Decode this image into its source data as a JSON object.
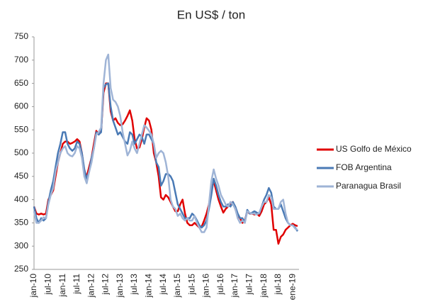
{
  "chart_data": {
    "type": "line",
    "title": "En US$ / ton",
    "categories": [
      "jan-10",
      null,
      null,
      null,
      null,
      null,
      "jul-10",
      null,
      null,
      null,
      null,
      null,
      "jan-11",
      null,
      null,
      null,
      null,
      null,
      "jul-11",
      null,
      null,
      null,
      null,
      null,
      "jan-12",
      null,
      null,
      null,
      null,
      null,
      "jul-12",
      null,
      null,
      null,
      null,
      null,
      "jan-13",
      null,
      null,
      null,
      null,
      null,
      "jul-13",
      null,
      null,
      null,
      null,
      null,
      "jan-14",
      null,
      null,
      null,
      null,
      null,
      "jul-14",
      null,
      null,
      null,
      null,
      null,
      "jan-15",
      null,
      null,
      null,
      null,
      null,
      "jul-15",
      null,
      null,
      null,
      null,
      null,
      "jan-16",
      null,
      null,
      null,
      null,
      null,
      "jul-16",
      null,
      null,
      null,
      null,
      null,
      "jan-17",
      null,
      null,
      null,
      null,
      null,
      "jul-17",
      null,
      null,
      null,
      null,
      null,
      "jan-18",
      null,
      null,
      null,
      null,
      null,
      "jul-18",
      null,
      null,
      null,
      null,
      null,
      "ene-19",
      null,
      null
    ],
    "series": [
      {
        "name": "US Golfo de México",
        "color": "#e00000",
        "values": [
          385,
          370,
          368,
          370,
          368,
          370,
          400,
          410,
          420,
          450,
          480,
          500,
          520,
          525,
          525,
          520,
          522,
          525,
          530,
          525,
          500,
          460,
          450,
          470,
          490,
          520,
          548,
          540,
          548,
          630,
          650,
          650,
          590,
          570,
          575,
          565,
          560,
          562,
          570,
          580,
          592,
          570,
          530,
          510,
          512,
          530,
          555,
          575,
          570,
          550,
          500,
          480,
          450,
          405,
          400,
          410,
          405,
          395,
          385,
          375,
          375,
          390,
          400,
          370,
          350,
          345,
          345,
          350,
          345,
          340,
          342,
          355,
          370,
          390,
          420,
          440,
          420,
          400,
          385,
          372,
          380,
          385,
          390,
          395,
          380,
          365,
          360,
          350,
          355,
          375,
          370,
          370,
          368,
          370,
          365,
          375,
          390,
          395,
          405,
          390,
          335,
          335,
          305,
          320,
          325,
          335,
          340,
          345,
          348,
          345,
          343
        ]
      },
      {
        "name": "FOB Argentina",
        "color": "#4a7ab5",
        "values": [
          385,
          360,
          350,
          360,
          355,
          360,
          395,
          420,
          440,
          470,
          500,
          520,
          545,
          545,
          520,
          510,
          505,
          510,
          525,
          520,
          500,
          465,
          445,
          460,
          490,
          510,
          545,
          540,
          545,
          640,
          648,
          650,
          600,
          570,
          555,
          540,
          545,
          535,
          525,
          520,
          545,
          540,
          520,
          530,
          540,
          535,
          520,
          540,
          540,
          530,
          520,
          480,
          470,
          430,
          440,
          455,
          455,
          450,
          440,
          415,
          390,
          380,
          370,
          360,
          360,
          360,
          370,
          365,
          355,
          345,
          340,
          345,
          355,
          380,
          410,
          445,
          430,
          410,
          395,
          385,
          385,
          390,
          385,
          395,
          385,
          370,
          360,
          360,
          352,
          378,
          370,
          372,
          375,
          372,
          370,
          385,
          400,
          410,
          425,
          415,
          385,
          380,
          380,
          390,
          375,
          360,
          350,
          345,
          345,
          340,
          332
        ]
      },
      {
        "name": "Paranagua Brasil",
        "color": "#9fb4d6",
        "values": [
          375,
          350,
          350,
          355,
          362,
          360,
          390,
          410,
          425,
          460,
          480,
          500,
          510,
          515,
          500,
          495,
          493,
          500,
          515,
          510,
          490,
          450,
          435,
          460,
          480,
          510,
          540,
          545,
          555,
          650,
          700,
          712,
          640,
          615,
          610,
          600,
          580,
          545,
          520,
          495,
          505,
          525,
          510,
          500,
          520,
          540,
          560,
          555,
          548,
          540,
          520,
          490,
          500,
          505,
          500,
          480,
          450,
          400,
          385,
          380,
          365,
          370,
          360,
          355,
          360,
          355,
          355,
          365,
          350,
          340,
          330,
          330,
          340,
          390,
          440,
          465,
          445,
          430,
          410,
          400,
          390,
          385,
          395,
          390,
          380,
          360,
          350,
          355,
          350,
          375,
          372,
          370,
          370,
          368,
          372,
          385,
          395,
          395,
          410,
          405,
          380,
          380,
          380,
          395,
          400,
          370,
          350,
          345,
          345,
          338,
          335
        ]
      }
    ],
    "ylim": [
      250,
      750
    ],
    "yticks": [
      250,
      300,
      350,
      400,
      450,
      500,
      550,
      600,
      650,
      700,
      750
    ],
    "grid": false,
    "legend": "right"
  }
}
